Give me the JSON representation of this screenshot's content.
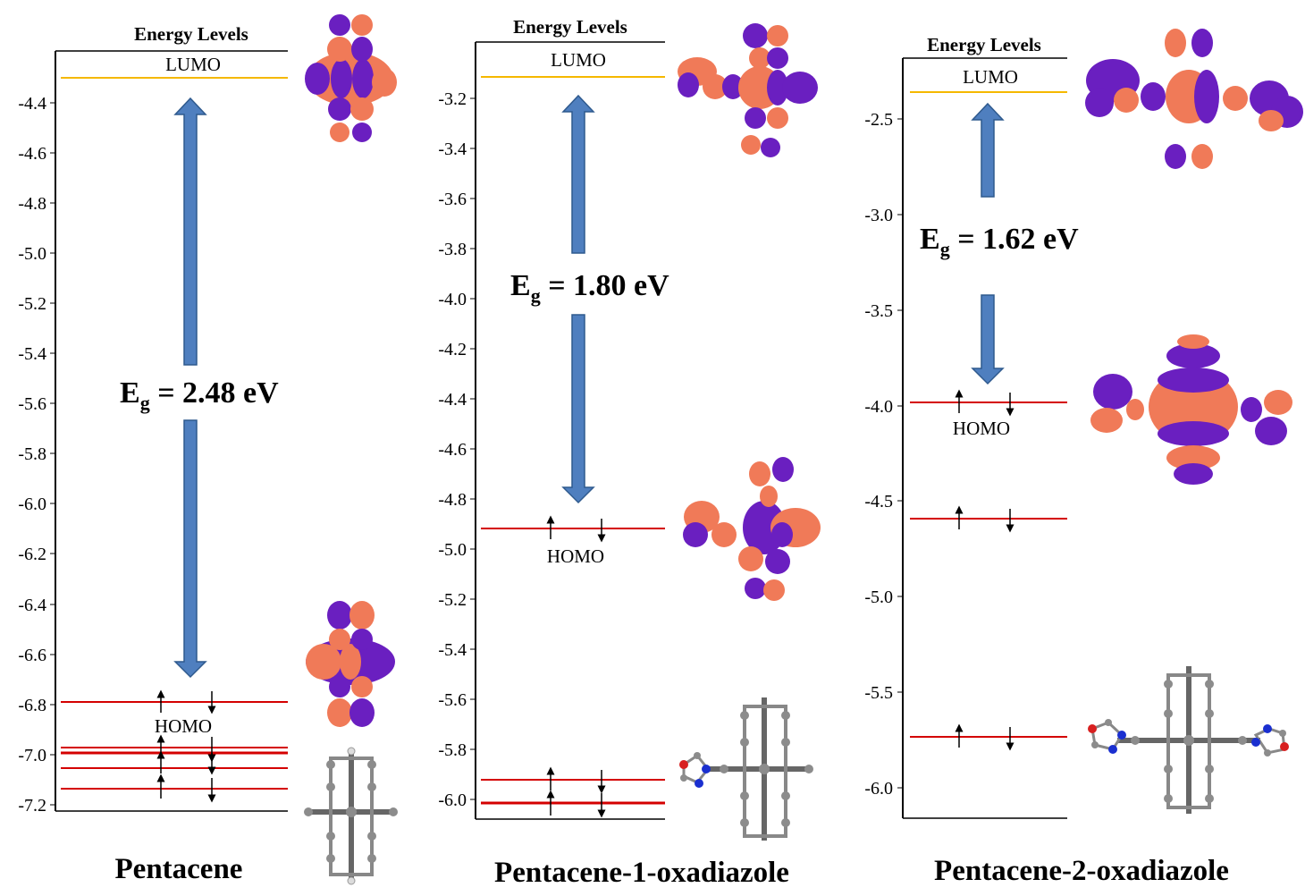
{
  "colors": {
    "lumo_line": "#f5b800",
    "homo_line": "#d40000",
    "arrow_fill": "#4f7fbf",
    "arrow_stroke": "#2f5a8e",
    "orbital_orange": "#f07a58",
    "orbital_purple": "#6a1fc0",
    "atom_carbon": "#8c8c8c",
    "atom_hydrogen": "#dcdcdc",
    "atom_nitrogen": "#1a2fd0",
    "atom_oxygen": "#d82020"
  },
  "panels": [
    {
      "title": "Energy Levels",
      "molecule_name": "Pentacene",
      "lumo_label": "LUMO",
      "homo_label": "HOMO",
      "gap_main": "E",
      "gap_sub": "g",
      "gap_value": " = 2.48 eV",
      "axis": {
        "min": -7.2,
        "max": -4.3,
        "ticks": [
          "-4.4",
          "-4.6",
          "-4.8",
          "-5.0",
          "-5.2",
          "-5.4",
          "-5.6",
          "-5.8",
          "-6.0",
          "-6.2",
          "-6.4",
          "-6.6",
          "-6.8",
          "-7.0",
          "-7.2"
        ]
      },
      "lumo_energy": -4.31,
      "occupied_levels": [
        -6.79,
        -6.97,
        -6.99,
        -7.05,
        -7.13
      ],
      "homo_energy": -6.79
    },
    {
      "title": "Energy Levels",
      "molecule_name": "Pentacene-1-oxadiazole",
      "lumo_label": "LUMO",
      "homo_label": "HOMO",
      "gap_main": "E",
      "gap_sub": "g",
      "gap_value": " = 1.80 eV",
      "axis": {
        "min": -6.05,
        "max": -3.0,
        "ticks": [
          "-3.2",
          "-3.4",
          "-3.6",
          "-3.8",
          "-4.0",
          "-4.2",
          "-4.4",
          "-4.6",
          "-4.8",
          "-5.0",
          "-5.2",
          "-5.4",
          "-5.6",
          "-5.8",
          "-6.0"
        ]
      },
      "lumo_energy": -3.11,
      "occupied_levels": [
        -4.91,
        -5.92,
        -6.01
      ],
      "homo_energy": -4.91
    },
    {
      "title": "Energy Levels",
      "molecule_name": "Pentacene-2-oxadiazole",
      "lumo_label": "LUMO",
      "homo_label": "HOMO",
      "gap_main": "E",
      "gap_sub": "g",
      "gap_value": " = 1.62 eV",
      "axis": {
        "min": -6.15,
        "max": -2.2,
        "ticks": [
          "-2.5",
          "-3.0",
          "-3.5",
          "-4.0",
          "-4.5",
          "-5.0",
          "-5.5",
          "-6.0"
        ]
      },
      "lumo_energy": -2.36,
      "occupied_levels": [
        -3.98,
        -4.59,
        -5.73
      ],
      "homo_energy": -3.98
    }
  ]
}
